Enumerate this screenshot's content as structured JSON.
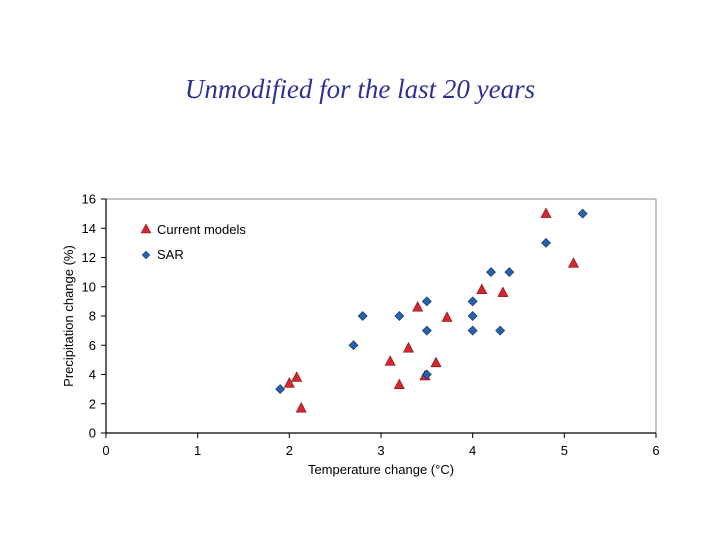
{
  "slide": {
    "title": "Unmodified for the last 20 years"
  },
  "colors": {
    "current_models": "#d7262f",
    "sar": "#2563ae",
    "axis": "#000000"
  },
  "chart_data": {
    "type": "scatter",
    "title": "",
    "xlabel": "Temperature change (°C)",
    "ylabel": "Precipitation change (%)",
    "xlim": [
      0,
      6
    ],
    "ylim": [
      0,
      16
    ],
    "x_ticks": [
      "0",
      "1",
      "2",
      "3",
      "4",
      "5",
      "6"
    ],
    "y_ticks": [
      "0",
      "2",
      "4",
      "6",
      "8",
      "10",
      "12",
      "14",
      "16"
    ],
    "grid": false,
    "legend_position": "top-left",
    "series": [
      {
        "name": "Current models",
        "marker": "triangle",
        "points": [
          [
            2.0,
            3.4
          ],
          [
            2.08,
            3.8
          ],
          [
            2.13,
            1.7
          ],
          [
            3.1,
            4.9
          ],
          [
            3.2,
            3.3
          ],
          [
            3.3,
            5.8
          ],
          [
            3.4,
            8.6
          ],
          [
            3.48,
            3.9
          ],
          [
            3.6,
            4.8
          ],
          [
            3.72,
            7.9
          ],
          [
            4.1,
            9.8
          ],
          [
            4.33,
            9.6
          ],
          [
            4.8,
            15.0
          ],
          [
            5.1,
            11.6
          ]
        ]
      },
      {
        "name": "SAR",
        "marker": "diamond",
        "points": [
          [
            1.9,
            3.0
          ],
          [
            2.7,
            6.0
          ],
          [
            2.8,
            8.0
          ],
          [
            3.2,
            8.0
          ],
          [
            3.5,
            9.0
          ],
          [
            3.5,
            7.0
          ],
          [
            3.5,
            4.0
          ],
          [
            4.0,
            9.0
          ],
          [
            4.0,
            8.0
          ],
          [
            4.0,
            7.0
          ],
          [
            4.2,
            11.0
          ],
          [
            4.3,
            7.0
          ],
          [
            4.4,
            11.0
          ],
          [
            4.8,
            13.0
          ],
          [
            5.2,
            15.0
          ]
        ]
      }
    ]
  }
}
